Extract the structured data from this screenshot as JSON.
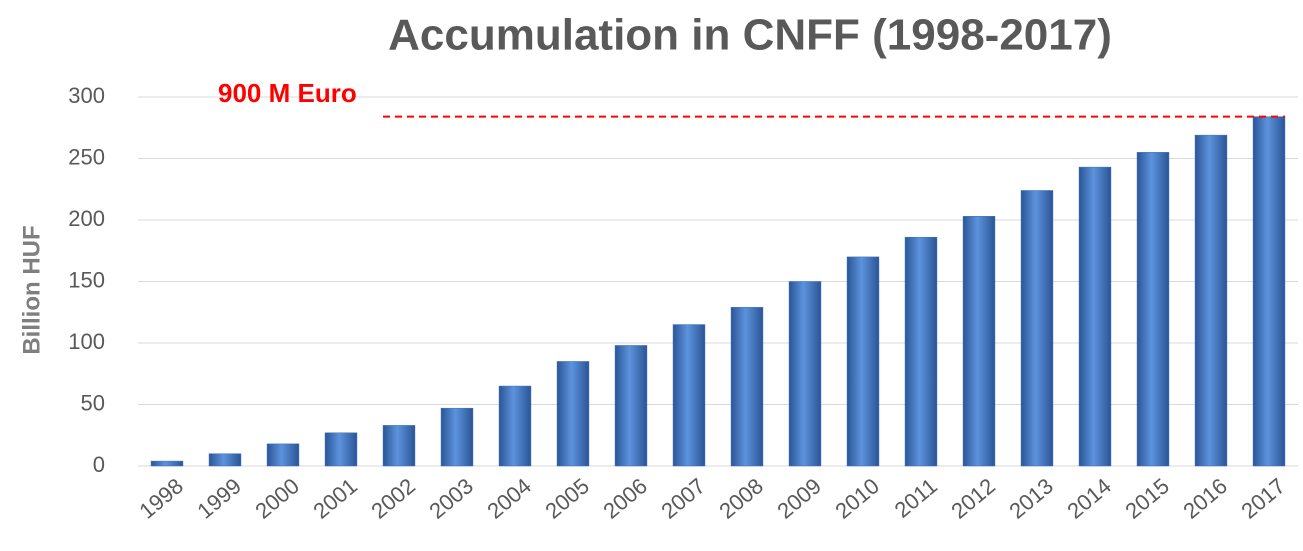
{
  "chart_data": {
    "type": "bar",
    "title": "Accumulation in CNFF (1998-2017)",
    "y_label": "Billion HUF",
    "categories": [
      "1998",
      "1999",
      "2000",
      "2001",
      "2002",
      "2003",
      "2004",
      "2005",
      "2006",
      "2007",
      "2008",
      "2009",
      "2010",
      "2011",
      "2012",
      "2013",
      "2014",
      "2015",
      "2016",
      "2017"
    ],
    "values": [
      4,
      10,
      18,
      27,
      33,
      47,
      65,
      85,
      98,
      115,
      129,
      150,
      170,
      186,
      203,
      224,
      243,
      255,
      269,
      284
    ],
    "color": "#3a6fb8",
    "ylim": [
      0,
      300
    ],
    "yticks": [
      0,
      50,
      100,
      150,
      200,
      250,
      300
    ],
    "grid": true,
    "reference_line": {
      "value": 284,
      "label": "900 M Euro",
      "color": "#ff0000"
    }
  }
}
